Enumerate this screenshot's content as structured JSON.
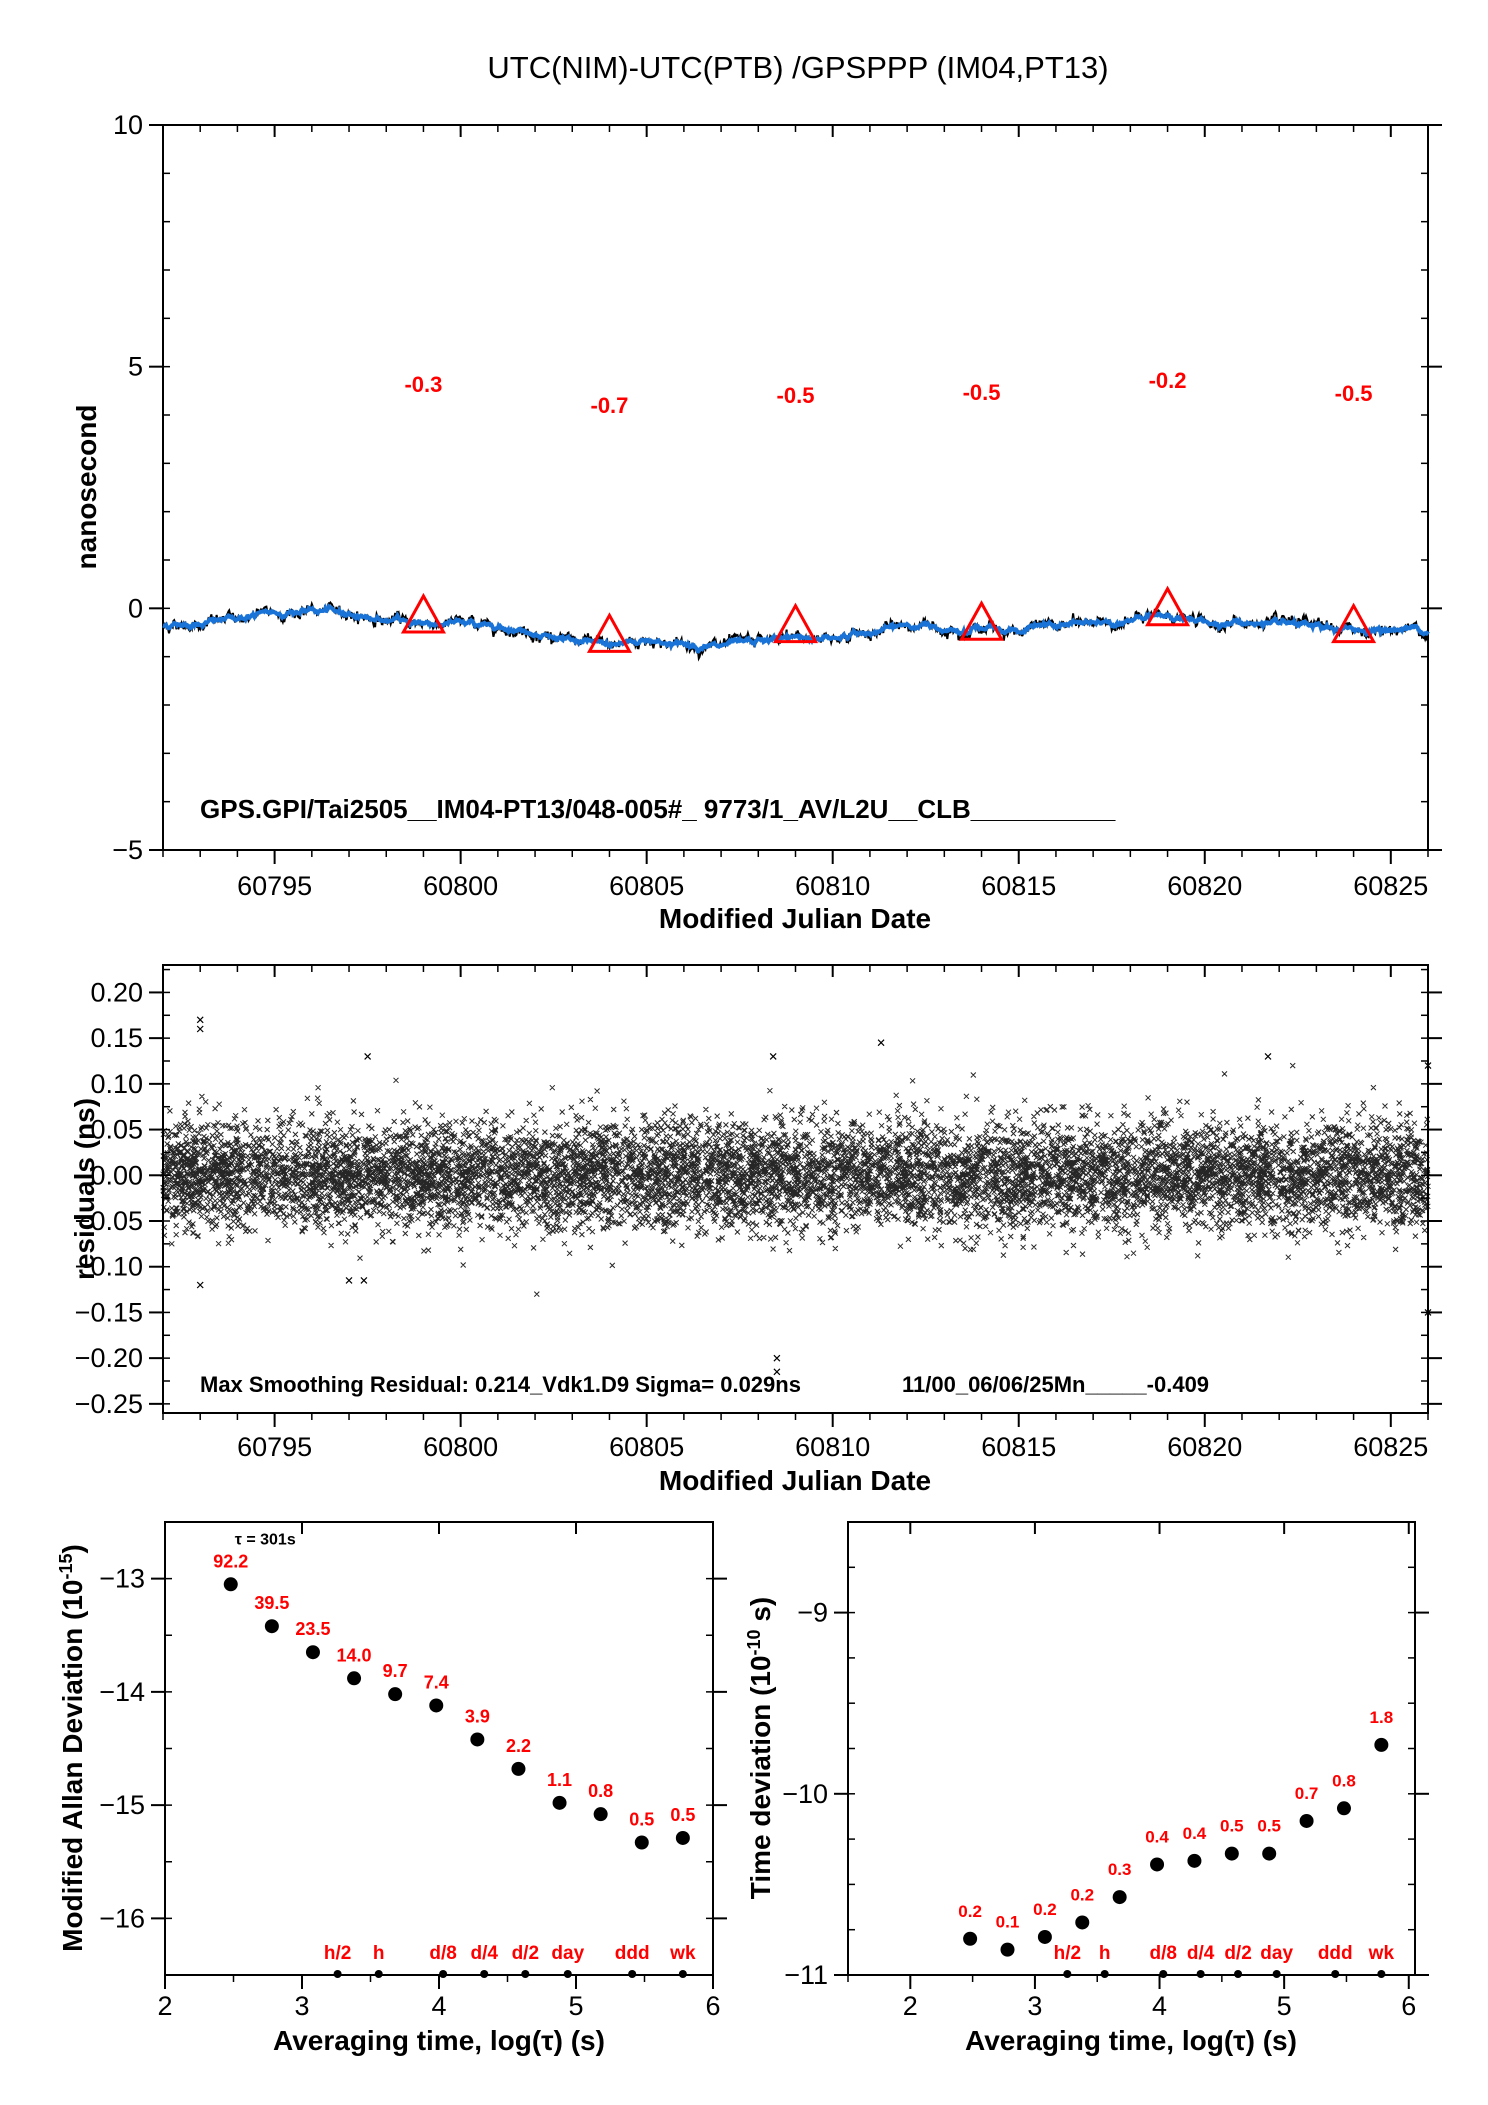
{
  "title": "UTC(NIM)-UTC(PTB)  /GPSPPP  (IM04,PT13)",
  "chart_data": [
    {
      "type": "line",
      "xlabel": "Modified Julian Date",
      "ylabel": "nanosecond",
      "xlim": [
        60792,
        60826
      ],
      "ylim": [
        -5,
        10
      ],
      "x_ticks": [
        "60795",
        "60800",
        "60805",
        "60810",
        "60815",
        "60820",
        "60825"
      ],
      "y_ticks": [
        "10",
        "5",
        "0",
        "−5"
      ],
      "series": [
        {
          "x": [
            60792,
            60793,
            60794,
            60795,
            60796,
            60797,
            60798,
            60799,
            60800,
            60801,
            60802,
            60803,
            60804,
            60805,
            60806,
            60807,
            60808,
            60809,
            60810,
            60811,
            60812,
            60813,
            60814,
            60815,
            60816,
            60817,
            60818,
            60819,
            60820,
            60821,
            60822,
            60823,
            60824,
            60825,
            60826
          ],
          "y": [
            -0.35,
            -0.3,
            -0.2,
            -0.1,
            -0.05,
            -0.1,
            -0.25,
            -0.3,
            -0.3,
            -0.35,
            -0.5,
            -0.7,
            -0.75,
            -0.65,
            -0.75,
            -0.8,
            -0.7,
            -0.6,
            -0.6,
            -0.5,
            -0.35,
            -0.4,
            -0.4,
            -0.45,
            -0.35,
            -0.3,
            -0.25,
            -0.15,
            -0.3,
            -0.3,
            -0.35,
            -0.4,
            -0.45,
            -0.45,
            -0.4
          ]
        }
      ],
      "markers": [
        {
          "x": 60799,
          "y": -0.2,
          "label": "-0.3"
        },
        {
          "x": 60804,
          "y": -0.6,
          "label": "-0.7"
        },
        {
          "x": 60809,
          "y": -0.4,
          "label": "-0.5"
        },
        {
          "x": 60814,
          "y": -0.35,
          "label": "-0.5"
        },
        {
          "x": 60819,
          "y": -0.05,
          "label": "-0.2"
        },
        {
          "x": 60824,
          "y": -0.4,
          "label": "-0.5"
        }
      ],
      "annotation": "GPS.GPI/Tai2505__IM04-PT13/048-005#_  9773/1_AV/L2U__CLB__________"
    },
    {
      "type": "scatter",
      "xlabel": "Modified Julian Date",
      "ylabel": "residuals (ns)",
      "xlim": [
        60792,
        60826
      ],
      "ylim": [
        -0.26,
        0.23
      ],
      "x_ticks": [
        "60795",
        "60800",
        "60805",
        "60810",
        "60815",
        "60820",
        "60825"
      ],
      "y_ticks": [
        "0.20",
        "0.15",
        "0.10",
        "0.05",
        "0.00",
        "−0.05",
        "−0.10",
        "−0.15",
        "−0.20",
        "−0.25"
      ],
      "noise_sigma": 0.029,
      "outliers": [
        {
          "x": 60793.0,
          "y": 0.17
        },
        {
          "x": 60793.0,
          "y": 0.16
        },
        {
          "x": 60793.0,
          "y": -0.12
        },
        {
          "x": 60797.5,
          "y": 0.13
        },
        {
          "x": 60797.4,
          "y": -0.115
        },
        {
          "x": 60808.5,
          "y": -0.2
        },
        {
          "x": 60808.5,
          "y": -0.215
        },
        {
          "x": 60808.4,
          "y": 0.13
        },
        {
          "x": 60811.3,
          "y": 0.145
        },
        {
          "x": 60821.7,
          "y": 0.13
        },
        {
          "x": 60826.0,
          "y": 0.12
        },
        {
          "x": 60826.0,
          "y": -0.15
        },
        {
          "x": 60797.0,
          "y": -0.115
        }
      ],
      "annotation_left": "Max Smoothing Residual: 0.214_Vdk1.D9  Sigma= 0.029ns",
      "annotation_right": "11/00_06/06/25Mn_____-0.409"
    },
    {
      "type": "scatter",
      "xlabel": "Averaging time, log(τ) (s)",
      "ylabel": "Modified Allan Deviation (10",
      "ylabel_exp": "-15",
      "ylabel_end": ")",
      "xlim": [
        2,
        6
      ],
      "ylim": [
        -16.5,
        -12.5
      ],
      "x_ticks": [
        "2",
        "3",
        "4",
        "5",
        "6"
      ],
      "y_ticks": [
        "−13",
        "−14",
        "−15",
        "−16"
      ],
      "tau_note": "τ = 301s",
      "x": [
        2.48,
        2.78,
        3.08,
        3.38,
        3.68,
        3.98,
        4.28,
        4.58,
        4.88,
        5.18,
        5.48,
        5.78
      ],
      "y": [
        -13.05,
        -13.42,
        -13.65,
        -13.88,
        -14.02,
        -14.12,
        -14.42,
        -14.68,
        -14.98,
        -15.08,
        -15.33,
        -15.29
      ],
      "labels": [
        "92.2",
        "39.5",
        "23.5",
        "14.0",
        "9.7",
        "7.4",
        "3.9",
        "2.2",
        "1.1",
        "0.8",
        "0.5",
        "0.5"
      ],
      "time_marks": [
        {
          "x": 3.26,
          "label": "h/2"
        },
        {
          "x": 3.56,
          "label": "h"
        },
        {
          "x": 4.03,
          "label": "d/8"
        },
        {
          "x": 4.33,
          "label": "d/4"
        },
        {
          "x": 4.63,
          "label": "d/2"
        },
        {
          "x": 4.94,
          "label": "day"
        },
        {
          "x": 5.41,
          "label": "ddd"
        },
        {
          "x": 5.78,
          "label": "wk"
        }
      ]
    },
    {
      "type": "scatter",
      "xlabel": "Averaging time, log(τ) (s)",
      "ylabel": "Time deviation (10",
      "ylabel_exp": "-10",
      "ylabel_end": " s)",
      "xlim": [
        1.5,
        6.05
      ],
      "ylim": [
        -11,
        -8.5
      ],
      "x_ticks": [
        "2",
        "3",
        "4",
        "5",
        "6"
      ],
      "y_ticks": [
        "−9",
        "−10",
        "−11"
      ],
      "x": [
        2.48,
        2.78,
        3.08,
        3.38,
        3.68,
        3.98,
        4.28,
        4.58,
        4.88,
        5.18,
        5.48,
        5.78
      ],
      "y": [
        -10.8,
        -10.86,
        -10.79,
        -10.71,
        -10.57,
        -10.39,
        -10.37,
        -10.33,
        -10.33,
        -10.15,
        -10.08,
        -9.73
      ],
      "labels": [
        "0.2",
        "0.1",
        "0.2",
        "0.2",
        "0.3",
        "0.4",
        "0.4",
        "0.5",
        "0.5",
        "0.7",
        "0.8",
        "1.8"
      ],
      "time_marks": [
        {
          "x": 3.26,
          "label": "h/2"
        },
        {
          "x": 3.56,
          "label": "h"
        },
        {
          "x": 4.03,
          "label": "d/8"
        },
        {
          "x": 4.33,
          "label": "d/4"
        },
        {
          "x": 4.63,
          "label": "d/2"
        },
        {
          "x": 4.94,
          "label": "day"
        },
        {
          "x": 5.41,
          "label": "ddd"
        },
        {
          "x": 5.78,
          "label": "wk"
        }
      ]
    }
  ]
}
